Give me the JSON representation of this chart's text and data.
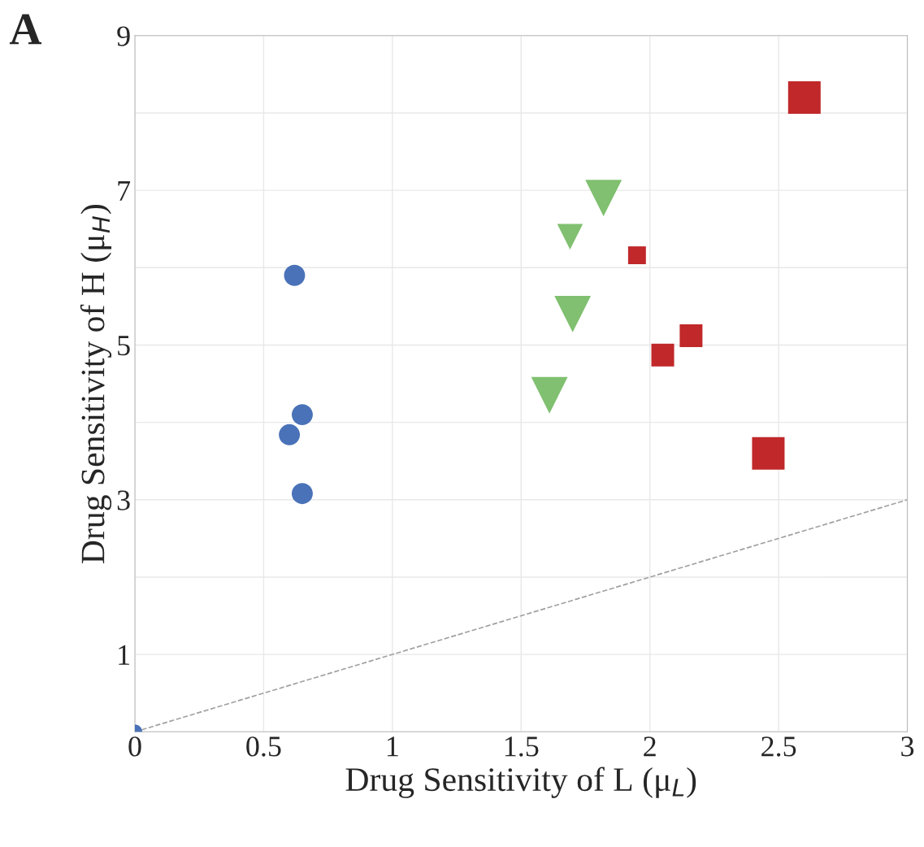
{
  "chart_data": {
    "type": "bubble",
    "xlabel": "Drug Sensitivity of L (μ$_{L}$)",
    "ylabel": "Drug Sensitivity of H (μ$_{H}$)",
    "annotations": [
      "A"
    ],
    "xlim": [
      0,
      3
    ],
    "xticks": [
      0,
      0.5,
      1,
      1.5,
      2,
      2.5,
      3
    ],
    "ylim": [
      0,
      9
    ],
    "yticks": [
      {
        "value": 0,
        "label": null
      },
      1,
      {
        "value": 2,
        "label": null
      },
      3,
      {
        "value": 4,
        "label": null
      },
      5,
      {
        "value": 6,
        "label": null
      },
      7,
      {
        "value": 8,
        "label": null
      },
      9
    ],
    "grid": true,
    "series": [
      {
        "color": "#4a72b8",
        "marker": "circle",
        "x": [
          0,
          0.62,
          0.65,
          0.6,
          0.65
        ],
        "values": [
          0,
          5.9,
          4.1,
          3.84,
          3.08
        ],
        "sizes": [
          0.16,
          0.33,
          0.33,
          0.33,
          0.33
        ]
      },
      {
        "color": "#80c070",
        "marker": "triangle",
        "x": [
          1.82,
          1.69,
          1.7,
          1.61
        ],
        "values": [
          6.9,
          6.4,
          5.4,
          4.35
        ],
        "sizes": [
          0.63,
          0.31,
          0.63,
          0.63
        ]
      },
      {
        "color": "#c0282a",
        "marker": "square",
        "x": [
          2.6,
          1.95,
          2.05,
          2.16,
          2.46
        ],
        "values": [
          8.2,
          6.16,
          4.87,
          5.12,
          3.6
        ],
        "sizes": [
          1,
          0.3,
          0.49,
          0.49,
          1
        ]
      },
      {
        "type": "line",
        "color": "#a0a0a0",
        "line_style": "dashed",
        "x": [
          0,
          3
        ],
        "values": [
          0,
          3
        ]
      }
    ]
  }
}
